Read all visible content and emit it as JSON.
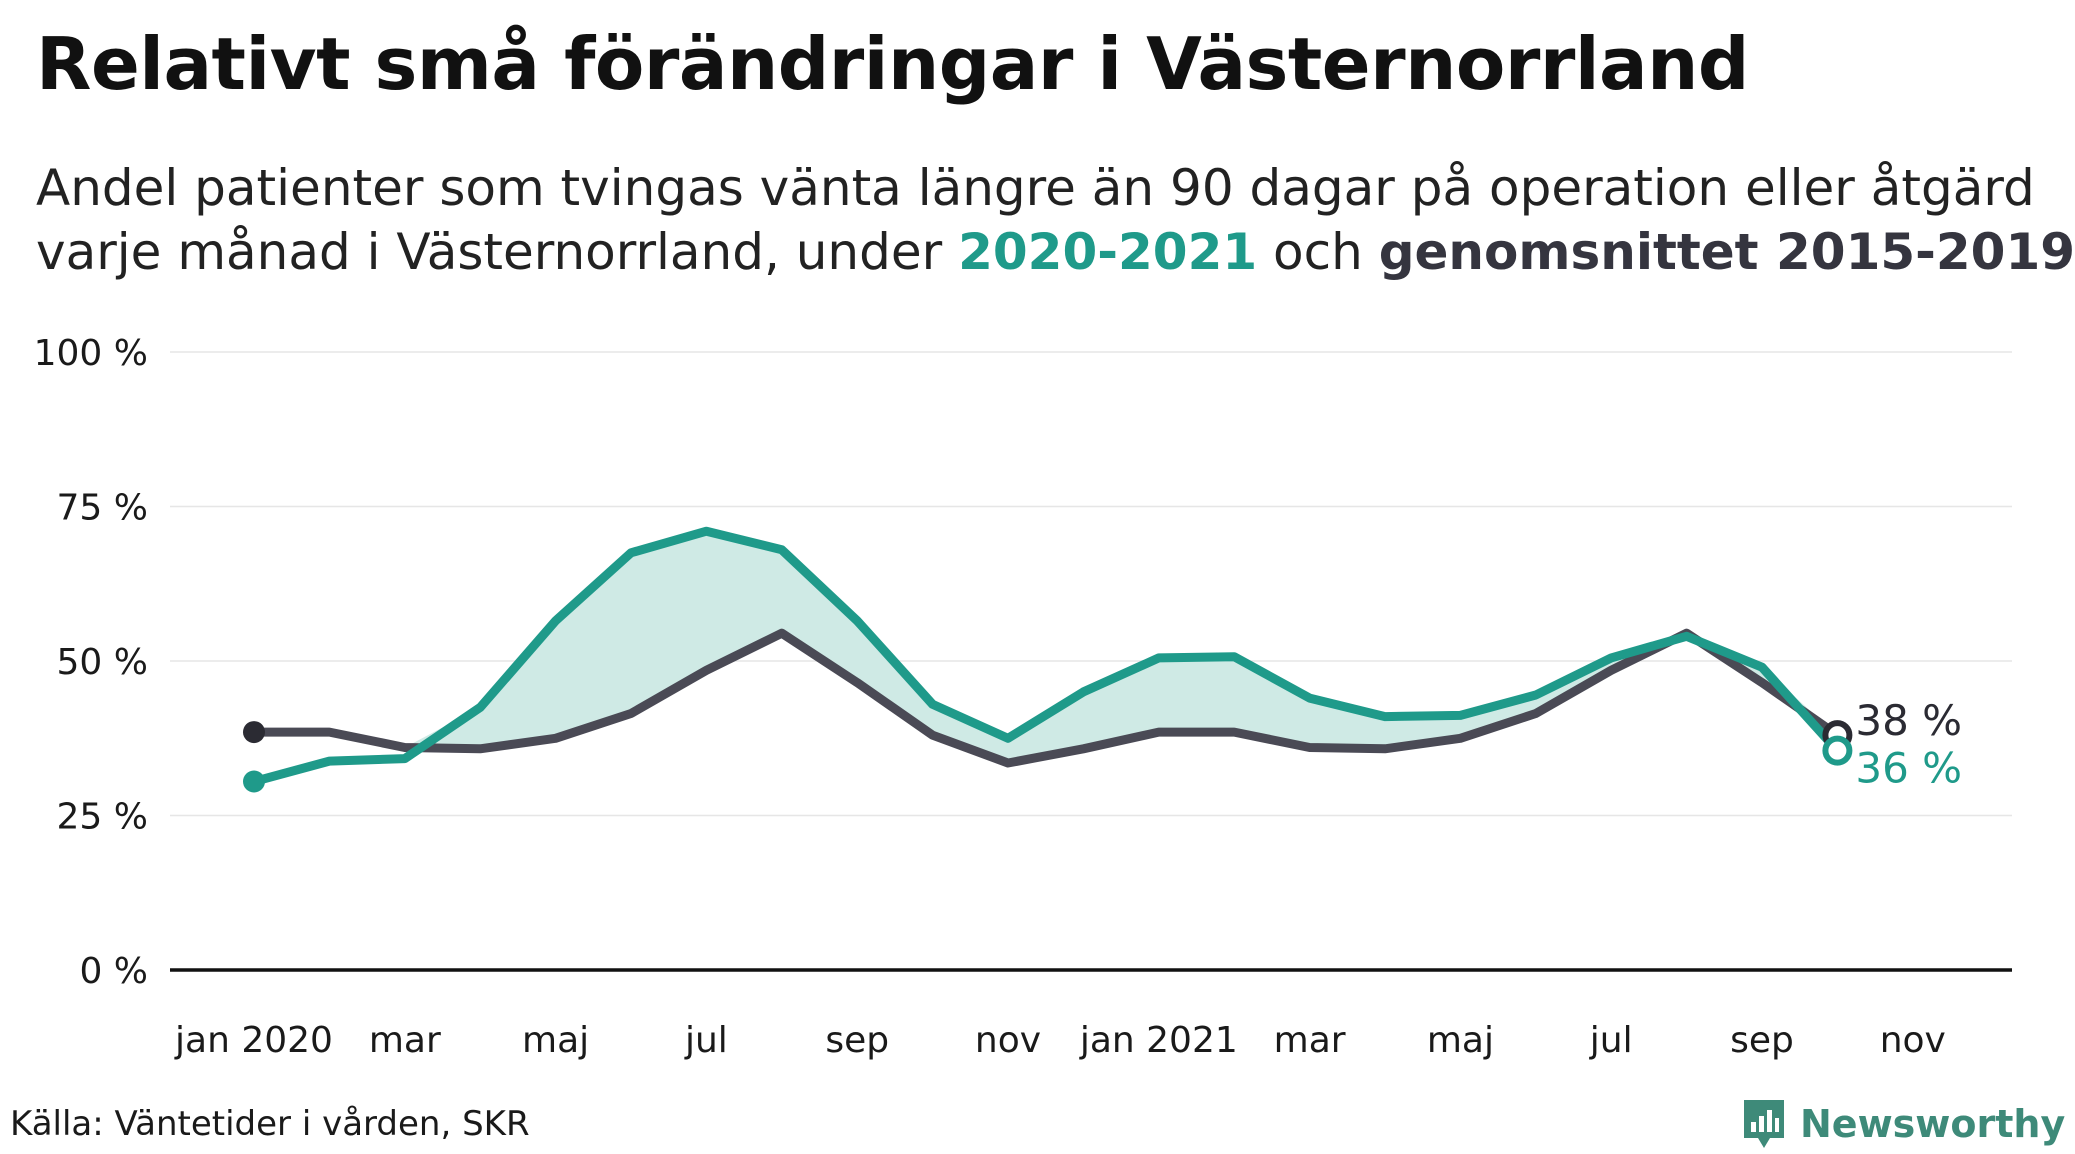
{
  "header": {
    "title": "Relativt små förändringar i Västernorrland",
    "subtitle_line1": "Andel patienter som tvingas vänta längre än 90 dagar på operation eller åtgärd",
    "subtitle_line2_prefix": "varje månad i Västernorrland, under ",
    "subtitle_highlight_a": "2020-2021",
    "subtitle_mid": " och ",
    "subtitle_highlight_b": "genomsnittet 2015-2019"
  },
  "footer": {
    "source": "Källa: Väntetider i vården, SKR",
    "brand": "Newsworthy",
    "brand_icon": "bar-chart-speech-bubble-icon"
  },
  "colors": {
    "current": "#1f9a8a",
    "average": "#4a4a55",
    "fill": "#cfeae5",
    "grid": "#e6e6e6",
    "axis": "#111111"
  },
  "chart_data": {
    "type": "line",
    "x_tick_labels": [
      "jan 2020",
      "mar",
      "maj",
      "jul",
      "sep",
      "nov",
      "jan 2021",
      "mar",
      "maj",
      "jul",
      "sep",
      "nov"
    ],
    "y_tick_labels": [
      "0 %",
      "25 %",
      "50 %",
      "75 %",
      "100 %"
    ],
    "y_ticks": [
      0,
      25,
      50,
      75,
      100
    ],
    "ylim": [
      0,
      100
    ],
    "x": [
      "2020-01",
      "2020-02",
      "2020-03",
      "2020-04",
      "2020-05",
      "2020-06",
      "2020-07",
      "2020-08",
      "2020-09",
      "2020-10",
      "2020-11",
      "2020-12",
      "2021-01",
      "2021-02",
      "2021-03",
      "2021-04",
      "2021-05",
      "2021-06",
      "2021-07",
      "2021-08",
      "2021-09",
      "2021-10"
    ],
    "xlim": [
      "2020-01",
      "2021-12"
    ],
    "series": [
      {
        "key": "average",
        "values": [
          38.5,
          38.5,
          36,
          35.8,
          37.5,
          41.5,
          48.5,
          54.5,
          46.5,
          38,
          33.5,
          35.8,
          38.5,
          38.5,
          36,
          35.8,
          37.5,
          41.5,
          48.5,
          54.5,
          46.5,
          38
        ],
        "end_label": "38 %"
      },
      {
        "key": "current",
        "values": [
          30.5,
          33.8,
          34.2,
          42.5,
          56.5,
          67.5,
          71,
          68,
          56.5,
          43,
          37.5,
          45,
          50.5,
          50.7,
          44,
          41,
          41.2,
          44.5,
          50.5,
          54,
          49,
          35.5
        ],
        "end_label": "36 %"
      }
    ],
    "fill_between": true,
    "grid": true,
    "legend": "in-subtitle"
  }
}
